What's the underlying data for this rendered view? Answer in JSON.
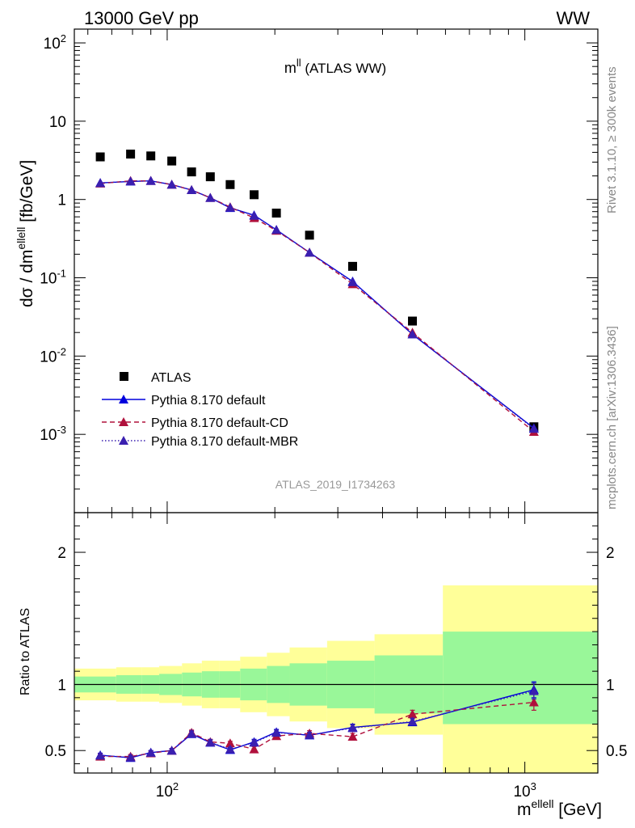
{
  "header": {
    "left": "13000 GeV pp",
    "right": "WW"
  },
  "side_text": {
    "rivet": "Rivet 3.1.10, ≥ 300k events",
    "mcplots": "mcplots.cern.ch [arXiv:1306.3436]"
  },
  "chart_data": [
    {
      "type": "scatter",
      "title_main": "m",
      "title_sup": "ll",
      "title_rest": " (ATLAS WW)",
      "watermark": "ATLAS_2019_I1734263",
      "yaxis": {
        "label_prefix": "dσ / dm",
        "label_sup": "ellell",
        "label_suffix": " [fb/GeV]",
        "scale": "log",
        "ylim": [
          0.0001,
          150
        ],
        "tick_labels": [
          "10^-3",
          "10^-2",
          "10^-1",
          "1",
          "10",
          "10^2"
        ]
      },
      "xaxis": {
        "scale": "log",
        "xlim": [
          55,
          1600
        ]
      },
      "legend": {
        "position": "bottom-left",
        "entries": [
          "ATLAS",
          "Pythia 8.170 default",
          "Pythia 8.170 default-CD",
          "Pythia 8.170 default-MBR"
        ]
      },
      "series": [
        {
          "name": "ATLAS",
          "color": "#000000",
          "marker": "square",
          "x": [
            65,
            79,
            90,
            103,
            117,
            132,
            150,
            175,
            202,
            250,
            330,
            485,
            1060
          ],
          "y": [
            3.5,
            3.8,
            3.6,
            3.1,
            2.25,
            1.95,
            1.55,
            1.15,
            0.67,
            0.35,
            0.14,
            0.028,
            0.00125
          ]
        },
        {
          "name": "Pythia 8.170 default",
          "color": "#0000dd",
          "marker": "triangle",
          "line": "solid",
          "x": [
            65,
            79,
            90,
            103,
            117,
            132,
            150,
            175,
            202,
            250,
            330,
            485,
            1060
          ],
          "y": [
            1.63,
            1.7,
            1.73,
            1.55,
            1.32,
            1.05,
            0.78,
            0.63,
            0.41,
            0.21,
            0.09,
            0.019,
            0.0012
          ]
        },
        {
          "name": "Pythia 8.170 default-CD",
          "color": "#b0103c",
          "marker": "triangle",
          "line": "dashed",
          "x": [
            65,
            79,
            90,
            103,
            117,
            132,
            150,
            175,
            202,
            250,
            330,
            485,
            1060
          ],
          "y": [
            1.6,
            1.73,
            1.73,
            1.55,
            1.32,
            1.05,
            0.8,
            0.58,
            0.4,
            0.21,
            0.083,
            0.02,
            0.00108
          ]
        },
        {
          "name": "Pythia 8.170 default-MBR",
          "color": "#3a1fb0",
          "marker": "triangle",
          "line": "dotted",
          "x": [
            65,
            79,
            90,
            103,
            117,
            132,
            150,
            175,
            202,
            250,
            330,
            485,
            1060
          ],
          "y": [
            1.62,
            1.71,
            1.73,
            1.55,
            1.32,
            1.05,
            0.79,
            0.62,
            0.41,
            0.21,
            0.088,
            0.019,
            0.00118
          ]
        }
      ]
    },
    {
      "type": "scatter",
      "yaxis": {
        "label": "Ratio to ATLAS",
        "ylim": [
          0.33,
          2.3
        ],
        "ticks": [
          0.5,
          1,
          2
        ],
        "tick_labels": [
          "0.5",
          "1",
          "2"
        ]
      },
      "xaxis": {
        "label_prefix": "m",
        "label_sup": "ellell",
        "label_suffix": " [GeV]",
        "scale": "log",
        "xlim": [
          55,
          1600
        ],
        "ticks": [
          100,
          1000
        ],
        "tick_labels": [
          "10^2",
          "10^3"
        ]
      },
      "bands": {
        "edges": [
          55,
          72,
          85,
          95,
          110,
          125,
          140,
          160,
          190,
          220,
          280,
          380,
          590,
          1600
        ],
        "inner": [
          [
            0.94,
            1.06
          ],
          [
            0.93,
            1.07
          ],
          [
            0.93,
            1.07
          ],
          [
            0.92,
            1.08
          ],
          [
            0.91,
            1.09
          ],
          [
            0.9,
            1.1
          ],
          [
            0.9,
            1.1
          ],
          [
            0.88,
            1.12
          ],
          [
            0.86,
            1.14
          ],
          [
            0.84,
            1.16
          ],
          [
            0.82,
            1.18
          ],
          [
            0.78,
            1.22
          ],
          [
            0.7,
            1.4
          ]
        ],
        "outer": [
          [
            0.88,
            1.12
          ],
          [
            0.87,
            1.13
          ],
          [
            0.87,
            1.13
          ],
          [
            0.86,
            1.14
          ],
          [
            0.84,
            1.16
          ],
          [
            0.82,
            1.18
          ],
          [
            0.82,
            1.18
          ],
          [
            0.79,
            1.21
          ],
          [
            0.76,
            1.24
          ],
          [
            0.72,
            1.28
          ],
          [
            0.67,
            1.33
          ],
          [
            0.62,
            1.38
          ],
          [
            0.33,
            1.75
          ]
        ],
        "inner_color": "#99f799",
        "outer_color": "#ffff99"
      },
      "series": [
        {
          "name": "Pythia 8.170 default",
          "color": "#0000dd",
          "marker": "triangle",
          "line": "solid",
          "x": [
            65,
            79,
            90,
            103,
            117,
            132,
            150,
            175,
            202,
            250,
            330,
            485,
            1060
          ],
          "y": [
            0.465,
            0.445,
            0.485,
            0.5,
            0.625,
            0.56,
            0.505,
            0.565,
            0.64,
            0.615,
            0.675,
            0.715,
            0.96
          ],
          "err": [
            0.015,
            0.015,
            0.015,
            0.015,
            0.02,
            0.02,
            0.015,
            0.02,
            0.02,
            0.02,
            0.025,
            0.025,
            0.06
          ]
        },
        {
          "name": "Pythia 8.170 default-CD",
          "color": "#b0103c",
          "marker": "triangle",
          "line": "dashed",
          "x": [
            65,
            79,
            90,
            103,
            117,
            132,
            150,
            175,
            202,
            250,
            330,
            485,
            1060
          ],
          "y": [
            0.455,
            0.455,
            0.48,
            0.5,
            0.635,
            0.565,
            0.555,
            0.51,
            0.61,
            0.63,
            0.605,
            0.775,
            0.865
          ],
          "err": [
            0.015,
            0.015,
            0.015,
            0.015,
            0.02,
            0.02,
            0.015,
            0.02,
            0.02,
            0.02,
            0.025,
            0.03,
            0.06
          ]
        },
        {
          "name": "Pythia 8.170 default-MBR",
          "color": "#3a1fb0",
          "marker": "triangle",
          "line": "dotted",
          "x": [
            65,
            79,
            90,
            103,
            117,
            132,
            150,
            175,
            202,
            250,
            330,
            485,
            1060
          ],
          "y": [
            0.462,
            0.448,
            0.484,
            0.5,
            0.628,
            0.562,
            0.51,
            0.56,
            0.635,
            0.618,
            0.67,
            0.72,
            0.95
          ],
          "err": [
            0.015,
            0.015,
            0.015,
            0.015,
            0.02,
            0.02,
            0.015,
            0.02,
            0.02,
            0.02,
            0.025,
            0.025,
            0.06
          ]
        }
      ]
    }
  ]
}
